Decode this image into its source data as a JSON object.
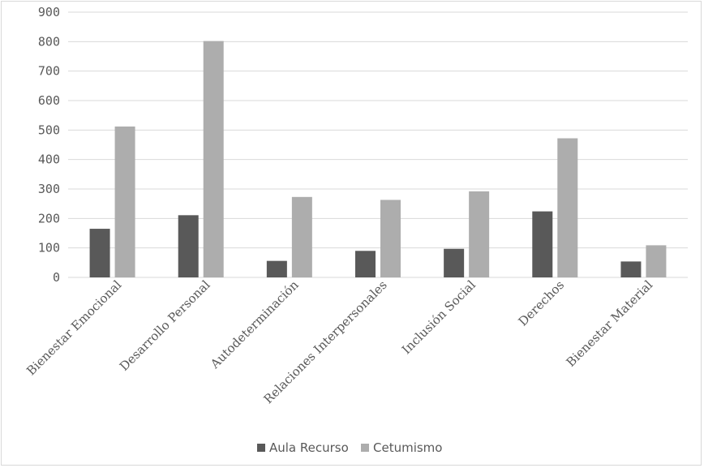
{
  "chart_data": {
    "type": "bar",
    "title": "",
    "xlabel": "",
    "ylabel": "",
    "categories": [
      "Bienestar Emocional",
      "Desarrollo Personal",
      "Autodeterminación",
      "Relaciones Interpersonales",
      "Inclusión Social",
      "Derechos",
      "Bienestar Material"
    ],
    "series": [
      {
        "name": "Aula Recurso",
        "color": "#595959",
        "values": [
          165,
          211,
          56,
          90,
          97,
          224,
          54
        ]
      },
      {
        "name": "Cetumismo",
        "color": "#adadad",
        "values": [
          512,
          802,
          273,
          263,
          292,
          472,
          109
        ]
      }
    ],
    "ylim": [
      0,
      900
    ],
    "yticks": [
      "0",
      "100",
      "200",
      "300",
      "400",
      "500",
      "600",
      "700",
      "800",
      "900"
    ],
    "grid": true,
    "legend_position": "bottom"
  }
}
